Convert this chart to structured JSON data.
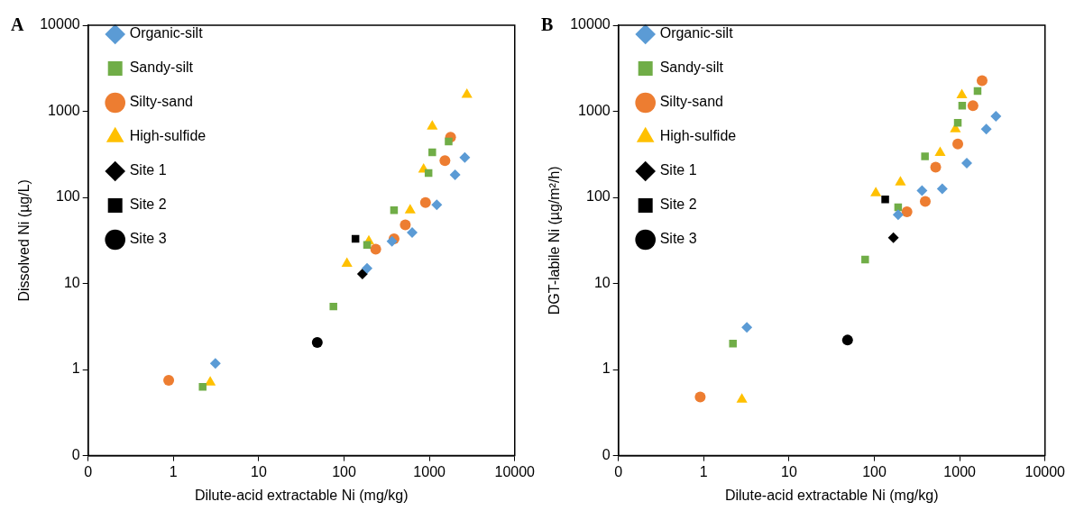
{
  "chart_data": [
    {
      "type": "scatter",
      "title": "A",
      "xlabel": "Dilute-acid extractable Ni (mg/kg)",
      "ylabel": "Dissolved Ni (µg/L)",
      "log": "xy",
      "grid": false,
      "legend": "top left",
      "xlim": [
        0.1,
        10000
      ],
      "ylim": [
        0.1,
        10000
      ],
      "xticks": [
        {
          "value": 0.1,
          "label": "0"
        },
        1,
        10,
        100,
        1000,
        10000
      ],
      "yticks": [
        {
          "value": 0.1,
          "label": "0"
        },
        1,
        10,
        100,
        1000,
        10000
      ],
      "series": [
        {
          "name": "Organic-silt",
          "color": "#5b9bd5",
          "marker": "diamond",
          "x": [
            3.1,
            186,
            364,
            628,
            1220,
            2000,
            2600
          ],
          "values": [
            1.18,
            15,
            31,
            39,
            82,
            183,
            290
          ]
        },
        {
          "name": "Sandy-silt",
          "color": "#70ad47",
          "marker": "square",
          "x": [
            2.2,
            75,
            186,
            385,
            977,
            1080,
            1680
          ],
          "values": [
            0.63,
            5.4,
            28,
            71,
            192,
            334,
            446
          ]
        },
        {
          "name": "Silty-sand",
          "color": "#ed7d31",
          "marker": "circle",
          "x": [
            0.88,
            235,
            385,
            522,
            900,
            1520,
            1770
          ],
          "values": [
            0.75,
            25,
            33,
            48,
            87,
            268,
            500
          ]
        },
        {
          "name": "High-sulfide",
          "color": "#ffc000",
          "marker": "triangle",
          "x": [
            2.7,
            108,
            195,
            595,
            855,
            1080,
            2750
          ],
          "values": [
            0.71,
            17,
            31,
            71,
            211,
            670,
            1560
          ]
        },
        {
          "name": "Site 1",
          "color": "#000000",
          "marker": "diamond",
          "x": [
            164
          ],
          "values": [
            12.9
          ]
        },
        {
          "name": "Site 2",
          "color": "#000000",
          "marker": "square",
          "x": [
            136
          ],
          "values": [
            33
          ]
        },
        {
          "name": "Site 3",
          "color": "#000000",
          "marker": "circle",
          "x": [
            48.5
          ],
          "values": [
            2.06
          ]
        }
      ]
    },
    {
      "type": "scatter",
      "title": "B",
      "xlabel": "Dilute-acid extractable Ni (mg/kg)",
      "ylabel": "DGT-labile Ni (µg/m²/h)",
      "log": "xy",
      "grid": false,
      "legend": "top left",
      "xlim": [
        0.1,
        10000
      ],
      "ylim": [
        0.1,
        10000
      ],
      "xticks": [
        {
          "value": 0.1,
          "label": "0"
        },
        1,
        10,
        100,
        1000,
        10000
      ],
      "yticks": [
        {
          "value": 0.1,
          "label": "0"
        },
        1,
        10,
        100,
        1000,
        10000
      ],
      "series": [
        {
          "name": "Organic-silt",
          "color": "#5b9bd5",
          "marker": "diamond",
          "x": [
            3.2,
            190,
            362,
            625,
            1210,
            2050,
            2660
          ],
          "values": [
            3.1,
            63,
            120,
            126,
            250,
            620,
            875
          ]
        },
        {
          "name": "Sandy-silt",
          "color": "#70ad47",
          "marker": "square",
          "x": [
            2.2,
            78,
            190,
            392,
            950,
            1070,
            1620
          ],
          "values": [
            2,
            19,
            77,
            300,
            735,
            1160,
            1720
          ]
        },
        {
          "name": "Silty-sand",
          "color": "#ed7d31",
          "marker": "circle",
          "x": [
            0.91,
            241,
            395,
            523,
            950,
            1430,
            1830
          ],
          "values": [
            0.48,
            68,
            90,
            225,
            417,
            1160,
            2270
          ]
        },
        {
          "name": "High-sulfide",
          "color": "#ffc000",
          "marker": "triangle",
          "x": [
            2.8,
            104,
            202,
            590,
            890,
            1060
          ],
          "values": [
            0.45,
            112,
            150,
            330,
            620,
            1540
          ]
        },
        {
          "name": "Site 1",
          "color": "#000000",
          "marker": "diamond",
          "x": [
            167
          ],
          "values": [
            34
          ]
        },
        {
          "name": "Site 2",
          "color": "#000000",
          "marker": "square",
          "x": [
            134
          ],
          "values": [
            95
          ]
        },
        {
          "name": "Site 3",
          "color": "#000000",
          "marker": "circle",
          "x": [
            48.5
          ],
          "values": [
            2.2
          ]
        }
      ]
    }
  ]
}
